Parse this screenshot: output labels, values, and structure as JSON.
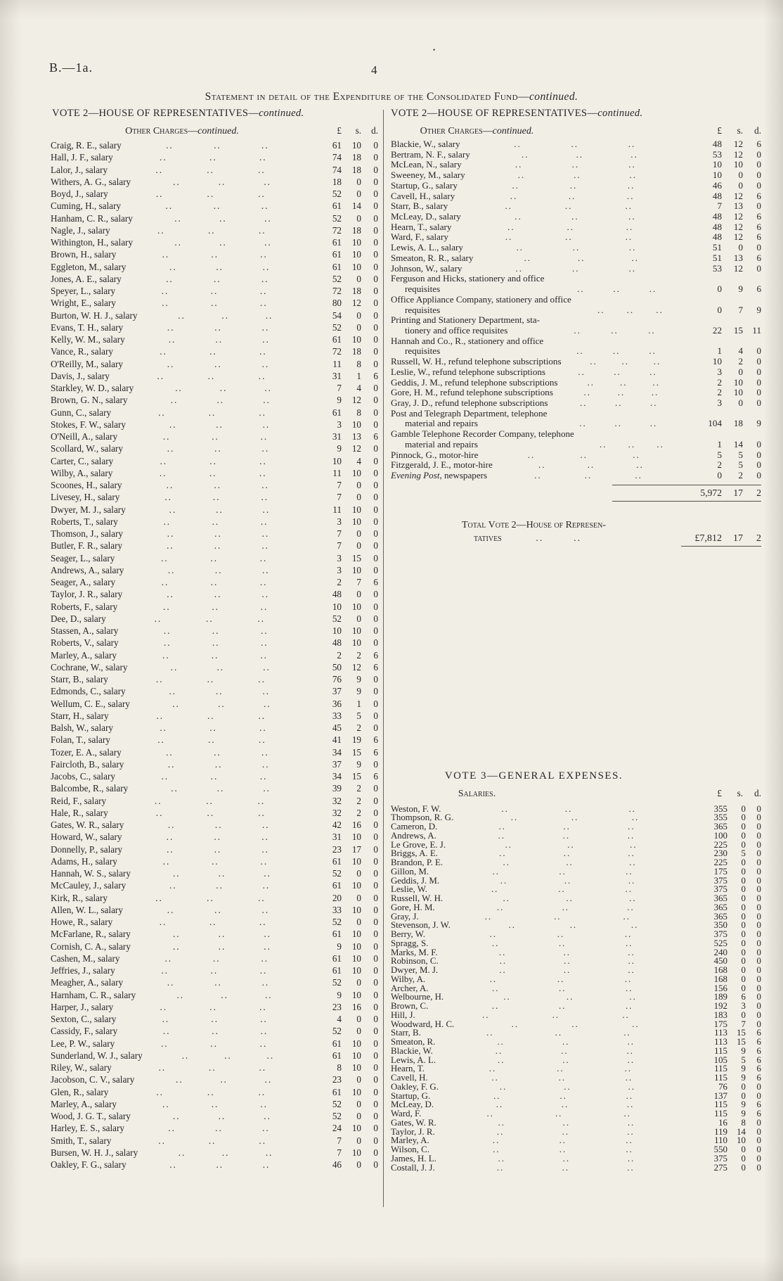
{
  "colors": {
    "paper": "#f1eee6",
    "ink": "#262626",
    "rule": "#55524a"
  },
  "page": {
    "doc_ref": "B.—1a.",
    "page_number": "4",
    "speck": "•",
    "title_main": "Statement in detail of the Expenditure of the Consolidated Fund—",
    "title_cont": "continued."
  },
  "left_column": {
    "vote_heading_main": "VOTE 2—HOUSE OF REPRESENTATIVES—",
    "vote_heading_cont": "continued.",
    "section_heading_main": "Other Charges—",
    "section_heading_cont": "continued.",
    "currency_headers": [
      "£",
      "s.",
      "d."
    ],
    "entries": [
      [
        "Craig, R. E., salary",
        "61",
        "10",
        "0"
      ],
      [
        "Hall, J. F., salary",
        "74",
        "18",
        "0"
      ],
      [
        "Lalor, J., salary",
        "74",
        "18",
        "0"
      ],
      [
        "Withers, A. G., salary",
        "18",
        "0",
        "0"
      ],
      [
        "Boyd, J., salary",
        "52",
        "0",
        "0"
      ],
      [
        "Cuming, H., salary",
        "61",
        "14",
        "0"
      ],
      [
        "Hanham, C. R., salary",
        "52",
        "0",
        "0"
      ],
      [
        "Nagle, J., salary",
        "72",
        "18",
        "0"
      ],
      [
        "Withington, H., salary",
        "61",
        "10",
        "0"
      ],
      [
        "Brown, H., salary",
        "61",
        "10",
        "0"
      ],
      [
        "Eggleton, M., salary",
        "61",
        "10",
        "0"
      ],
      [
        "Jones, A. E., salary",
        "52",
        "0",
        "0"
      ],
      [
        "Speyer, L., salary",
        "72",
        "18",
        "0"
      ],
      [
        "Wright, E., salary",
        "80",
        "12",
        "0"
      ],
      [
        "Burton, W. H. J., salary",
        "54",
        "0",
        "0"
      ],
      [
        "Evans, T. H., salary",
        "52",
        "0",
        "0"
      ],
      [
        "Kelly, W. M., salary",
        "61",
        "10",
        "0"
      ],
      [
        "Vance, R., salary",
        "72",
        "18",
        "0"
      ],
      [
        "O'Reilly, M., salary",
        "11",
        "8",
        "0"
      ],
      [
        "Davis, J., salary",
        "31",
        "1",
        "6"
      ],
      [
        "Starkley, W. D., salary",
        "7",
        "4",
        "0"
      ],
      [
        "Brown, G. N., salary",
        "9",
        "12",
        "0"
      ],
      [
        "Gunn, C., salary",
        "61",
        "8",
        "0"
      ],
      [
        "Stokes, F. W., salary",
        "3",
        "10",
        "0"
      ],
      [
        "O'Neill, A., salary",
        "31",
        "13",
        "6"
      ],
      [
        "Scollard, W., salary",
        "9",
        "12",
        "0"
      ],
      [
        "Carter, C., salary",
        "10",
        "4",
        "0"
      ],
      [
        "Wilby, A., salary",
        "11",
        "10",
        "0"
      ],
      [
        "Scoones, H., salary",
        "7",
        "0",
        "0"
      ],
      [
        "Livesey, H., salary",
        "7",
        "0",
        "0"
      ],
      [
        "Dwyer, M. J., salary",
        "11",
        "10",
        "0"
      ],
      [
        "Roberts, T., salary",
        "3",
        "10",
        "0"
      ],
      [
        "Thomson, J., salary",
        "7",
        "0",
        "0"
      ],
      [
        "Butler, F. R., salary",
        "7",
        "0",
        "0"
      ],
      [
        "Seager, L., salary",
        "3",
        "15",
        "0"
      ],
      [
        "Andrews, A., salary",
        "3",
        "10",
        "0"
      ],
      [
        "Seager, A., salary",
        "2",
        "7",
        "6"
      ],
      [
        "Taylor, J. R., salary",
        "48",
        "0",
        "0"
      ],
      [
        "Roberts, F., salary",
        "10",
        "10",
        "0"
      ],
      [
        "Dee, D., salary",
        "52",
        "0",
        "0"
      ],
      [
        "Stassen, A., salary",
        "10",
        "10",
        "0"
      ],
      [
        "Roberts, V., salary",
        "48",
        "10",
        "0"
      ],
      [
        "Marley, A., salary",
        "2",
        "2",
        "6"
      ],
      [
        "Cochrane, W., salary",
        "50",
        "12",
        "6"
      ],
      [
        "Starr, B., salary",
        "76",
        "9",
        "0"
      ],
      [
        "Edmonds, C., salary",
        "37",
        "9",
        "0"
      ],
      [
        "Wellum, C. E., salary",
        "36",
        "1",
        "0"
      ],
      [
        "Starr, H., salary",
        "33",
        "5",
        "0"
      ],
      [
        "Balsh, W., salary",
        "45",
        "2",
        "0"
      ],
      [
        "Folan, T., salary",
        "41",
        "19",
        "6"
      ],
      [
        "Tozer, E. A., salary",
        "34",
        "15",
        "6"
      ],
      [
        "Faircloth, B., salary",
        "37",
        "9",
        "0"
      ],
      [
        "Jacobs, C., salary",
        "34",
        "15",
        "6"
      ],
      [
        "Balcombe, R., salary",
        "39",
        "2",
        "0"
      ],
      [
        "Reid, F., salary",
        "32",
        "2",
        "0"
      ],
      [
        "Hale, R., salary",
        "32",
        "2",
        "0"
      ],
      [
        "Gates, W. R., salary",
        "42",
        "16",
        "0"
      ],
      [
        "Howard, W., salary",
        "31",
        "10",
        "0"
      ],
      [
        "Donnelly, P., salary",
        "23",
        "17",
        "0"
      ],
      [
        "Adams, H., salary",
        "61",
        "10",
        "0"
      ],
      [
        "Hannah, W. S., salary",
        "52",
        "0",
        "0"
      ],
      [
        "McCauley, J., salary",
        "61",
        "10",
        "0"
      ],
      [
        "Kirk, R., salary",
        "20",
        "0",
        "0"
      ],
      [
        "Allen, W. L., salary",
        "33",
        "10",
        "0"
      ],
      [
        "Howe, R., salary",
        "52",
        "0",
        "0"
      ],
      [
        "McFarlane, R., salary",
        "61",
        "10",
        "0"
      ],
      [
        "Cornish, C. A., salary",
        "9",
        "10",
        "0"
      ],
      [
        "Cashen, M., salary",
        "61",
        "10",
        "0"
      ],
      [
        "Jeffries, J., salary",
        "61",
        "10",
        "0"
      ],
      [
        "Meagher, A., salary",
        "52",
        "0",
        "0"
      ],
      [
        "Harnham, C. R., salary",
        "9",
        "10",
        "0"
      ],
      [
        "Harper, J., salary",
        "23",
        "16",
        "0"
      ],
      [
        "Sexton, C., salary",
        "4",
        "0",
        "0"
      ],
      [
        "Cassidy, F., salary",
        "52",
        "0",
        "0"
      ],
      [
        "Lee, P. W., salary",
        "61",
        "10",
        "0"
      ],
      [
        "Sunderland, W. J., salary",
        "61",
        "10",
        "0"
      ],
      [
        "Riley, W., salary",
        "8",
        "10",
        "0"
      ],
      [
        "Jacobson, C. V., salary",
        "23",
        "0",
        "0"
      ],
      [
        "Glen, R., salary",
        "61",
        "10",
        "0"
      ],
      [
        "Marley, A., salary",
        "52",
        "0",
        "0"
      ],
      [
        "Wood, J. G. T., salary",
        "52",
        "0",
        "0"
      ],
      [
        "Harley, E. S., salary",
        "24",
        "10",
        "0"
      ],
      [
        "Smith, T., salary",
        "7",
        "0",
        "0"
      ],
      [
        "Bursen, W. H. J., salary",
        "7",
        "10",
        "0"
      ],
      [
        "Oakley, F. G., salary",
        "46",
        "0",
        "0"
      ]
    ]
  },
  "right_column": {
    "vote_heading_main": "VOTE 2—HOUSE OF REPRESENTATIVES—",
    "vote_heading_cont": "continued.",
    "section_heading_main": "Other Charges—",
    "section_heading_cont": "continued.",
    "currency_headers": [
      "£",
      "s.",
      "d."
    ],
    "entries": [
      [
        "Blackie, W., salary",
        "48",
        "12",
        "6"
      ],
      [
        "Bertram, N. F., salary",
        "53",
        "12",
        "0"
      ],
      [
        "McLean, N., salary",
        "10",
        "10",
        "0"
      ],
      [
        "Sweeney, M., salary",
        "10",
        "0",
        "0"
      ],
      [
        "Startup, G., salary",
        "46",
        "0",
        "0"
      ],
      [
        "Cavell, H., salary",
        "48",
        "12",
        "6"
      ],
      [
        "Starr, B., salary",
        "7",
        "13",
        "0"
      ],
      [
        "McLeay, D., salary",
        "48",
        "12",
        "6"
      ],
      [
        "Hearn, T., salary",
        "48",
        "12",
        "6"
      ],
      [
        "Ward, F., salary",
        "48",
        "12",
        "6"
      ],
      [
        "Lewis, A. L., salary",
        "51",
        "0",
        "0"
      ],
      [
        "Smeaton, R. R., salary",
        "51",
        "13",
        "6"
      ],
      [
        "Johnson, W., salary",
        "53",
        "12",
        "0"
      ],
      [
        "Ferguson and Hicks, stationery and office\nrequisites",
        "0",
        "9",
        "6"
      ],
      [
        "Office Appliance Company, stationery and office\nrequisites",
        "0",
        "7",
        "9"
      ],
      [
        "Printing and Stationery Department, sta-\ntionery and office requisites",
        "22",
        "15",
        "11"
      ],
      [
        "Hannah and Co., R., stationery and office\nrequisites",
        "1",
        "4",
        "0"
      ],
      [
        "Russell, W. H., refund telephone subscriptions",
        "10",
        "2",
        "0"
      ],
      [
        "Leslie, W., refund telephone subscriptions",
        "3",
        "0",
        "0"
      ],
      [
        "Geddis, J. M., refund telephone subscriptions",
        "2",
        "10",
        "0"
      ],
      [
        "Gore, H. M., refund telephone subscriptions",
        "2",
        "10",
        "0"
      ],
      [
        "Gray, J. D., refund telephone subscriptions",
        "3",
        "0",
        "0"
      ],
      [
        "Post and Telegraph Department, telephone\nmaterial and repairs",
        "104",
        "18",
        "9"
      ],
      [
        "Gamble Telephone Recorder Company, telephone\nmaterial and repairs",
        "1",
        "14",
        "0"
      ],
      [
        "Pinnock, G., motor-hire",
        "5",
        "5",
        "0"
      ],
      [
        "Fitzgerald, J. E., motor-hire",
        "2",
        "5",
        "0"
      ],
      {
        "i": "Evening Post",
        "n": ", newspapers",
        "a": [
          "0",
          "2",
          "0"
        ]
      }
    ],
    "subtotal": [
      "5,972",
      "17",
      "2"
    ],
    "total_label_line1": "Total Vote 2—House of Represen-",
    "total_label_line2": "tatives",
    "total": [
      "£7,812",
      "17",
      "2"
    ],
    "vote3": {
      "heading": "VOTE 3—GENERAL EXPENSES.",
      "subheading": "Salaries.",
      "currency_headers": [
        "£",
        "s.",
        "d."
      ],
      "entries": [
        [
          "Weston, F. W.",
          "355",
          "0",
          "0"
        ],
        [
          "Thompson, R. G.",
          "355",
          "0",
          "0"
        ],
        [
          "Cameron, D.",
          "365",
          "0",
          "0"
        ],
        [
          "Andrews, A.",
          "100",
          "0",
          "0"
        ],
        [
          "Le Grove, E. J.",
          "225",
          "0",
          "0"
        ],
        [
          "Briggs, A. E.",
          "230",
          "5",
          "0"
        ],
        [
          "Brandon, P. E.",
          "225",
          "0",
          "0"
        ],
        [
          "Gillon, M.",
          "175",
          "0",
          "0"
        ],
        [
          "Geddis, J. M.",
          "375",
          "0",
          "0"
        ],
        [
          "Leslie, W.",
          "375",
          "0",
          "0"
        ],
        [
          "Russell, W. H.",
          "365",
          "0",
          "0"
        ],
        [
          "Gore, H. M.",
          "365",
          "0",
          "0"
        ],
        [
          "Gray, J.",
          "365",
          "0",
          "0"
        ],
        [
          "Stevenson, J. W.",
          "350",
          "0",
          "0"
        ],
        [
          "Berry, W.",
          "375",
          "0",
          "0"
        ],
        [
          "Spragg, S.",
          "525",
          "0",
          "0"
        ],
        [
          "Marks, M. F.",
          "240",
          "0",
          "0"
        ],
        [
          "Robinson, C.",
          "450",
          "0",
          "0"
        ],
        [
          "Dwyer, M. J.",
          "168",
          "0",
          "0"
        ],
        [
          "Wilby, A.",
          "168",
          "0",
          "0"
        ],
        [
          "Archer, A.",
          "156",
          "0",
          "0"
        ],
        [
          "Welbourne, H.",
          "189",
          "6",
          "0"
        ],
        [
          "Brown, C.",
          "192",
          "3",
          "0"
        ],
        [
          "Hill, J.",
          "183",
          "0",
          "0"
        ],
        [
          "Woodward, H. C.",
          "175",
          "7",
          "0"
        ],
        [
          "Starr, B.",
          "113",
          "15",
          "6"
        ],
        [
          "Smeaton, R.",
          "113",
          "15",
          "6"
        ],
        [
          "Blackie, W.",
          "115",
          "9",
          "6"
        ],
        [
          "Lewis, A. L.",
          "105",
          "5",
          "6"
        ],
        [
          "Hearn, T.",
          "115",
          "9",
          "6"
        ],
        [
          "Cavell, H.",
          "115",
          "9",
          "6"
        ],
        [
          "Oakley, F. G.",
          "76",
          "0",
          "0"
        ],
        [
          "Startup, G.",
          "137",
          "0",
          "0"
        ],
        [
          "McLeay, D.",
          "115",
          "9",
          "6"
        ],
        [
          "Ward, F.",
          "115",
          "9",
          "6"
        ],
        [
          "Gates, W. R.",
          "16",
          "8",
          "0"
        ],
        [
          "Taylor, J. R.",
          "119",
          "14",
          "0"
        ],
        [
          "Marley, A.",
          "110",
          "10",
          "0"
        ],
        [
          "Wilson, C.",
          "550",
          "0",
          "0"
        ],
        [
          "James, H. L.",
          "375",
          "0",
          "0"
        ],
        [
          "Costall, J. J.",
          "275",
          "0",
          "0"
        ]
      ]
    }
  }
}
